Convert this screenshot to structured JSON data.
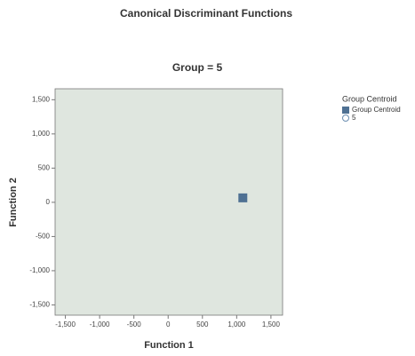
{
  "chart_data": {
    "type": "scatter",
    "title": "Canonical Discriminant Functions",
    "subtitle": "Group = 5",
    "x_label": "Function 1",
    "y_label": "Function 2",
    "legend_title": "Group Centroid",
    "xlim": [
      -1650,
      1670
    ],
    "ylim": [
      -1650,
      1660
    ],
    "xticks": [
      {
        "value": -1500,
        "label": "-1,500"
      },
      {
        "value": -1000,
        "label": "-1,000"
      },
      -500,
      0,
      500,
      {
        "value": 1000,
        "label": "1,000"
      },
      {
        "value": 1500,
        "label": "1,500"
      }
    ],
    "yticks": [
      {
        "value": -1500,
        "label": "-1,500"
      },
      {
        "value": -1000,
        "label": "-1,000"
      },
      -500,
      0,
      500,
      {
        "value": 1000,
        "label": "1,000"
      },
      {
        "value": 1500,
        "label": "1,500"
      }
    ],
    "series": [
      {
        "name": "Group Centroid",
        "color": "#4f7193",
        "marker": "square",
        "x": [
          1090
        ],
        "values": [
          65
        ]
      },
      {
        "name": "5",
        "color": "#6a8db0",
        "marker": "circle",
        "x": [],
        "values": []
      }
    ]
  }
}
